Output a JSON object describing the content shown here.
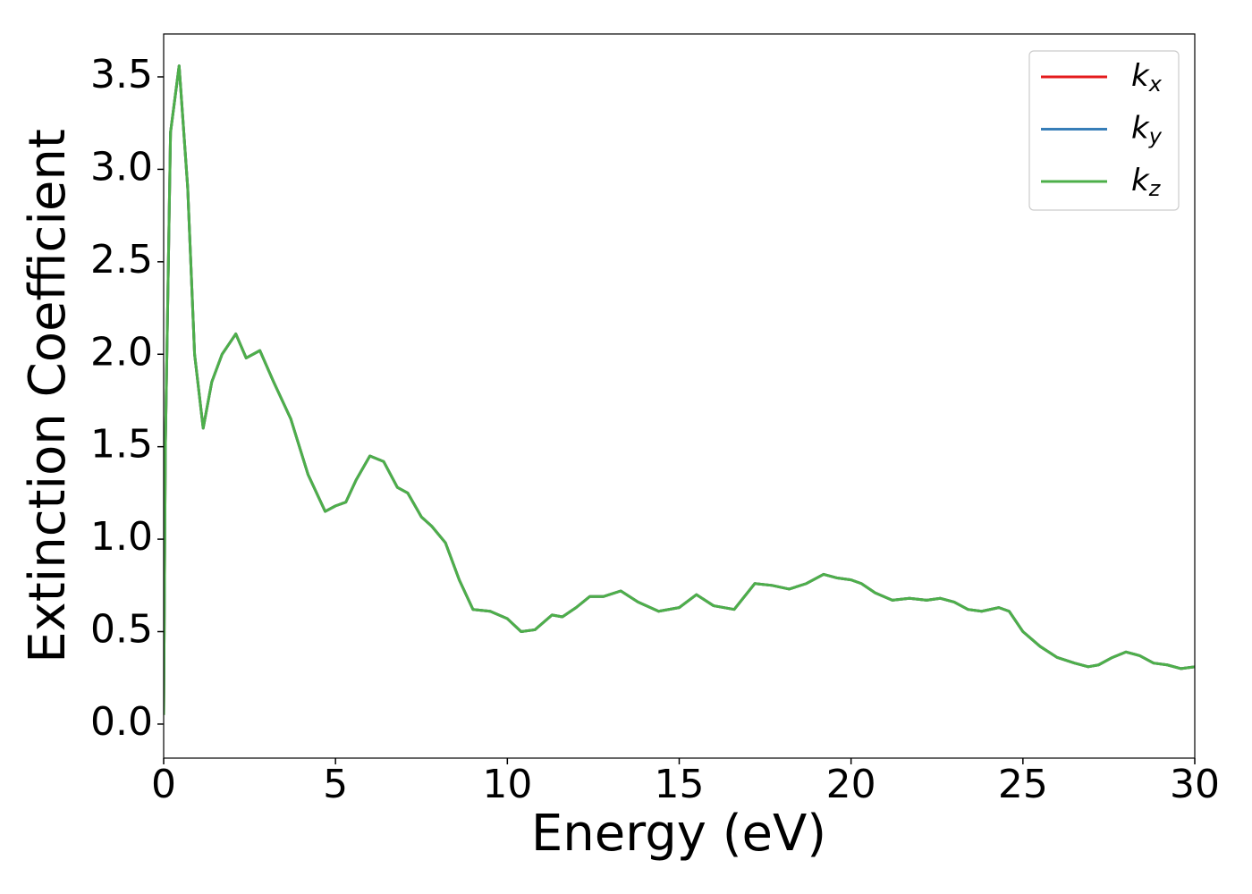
{
  "chart_data": {
    "type": "line",
    "xlabel": "Energy (eV)",
    "ylabel": "Extinction Coefficient",
    "x": [
      0,
      0.05,
      0.2,
      0.45,
      0.7,
      0.9,
      1.15,
      1.4,
      1.7,
      2.1,
      2.4,
      2.8,
      3.2,
      3.7,
      4.2,
      4.7,
      5.0,
      5.3,
      5.6,
      6.0,
      6.4,
      6.8,
      7.1,
      7.5,
      7.8,
      8.2,
      8.6,
      9.0,
      9.5,
      10.0,
      10.4,
      10.8,
      11.3,
      11.6,
      12.0,
      12.4,
      12.8,
      13.3,
      13.8,
      14.4,
      15.0,
      15.5,
      16.0,
      16.6,
      17.2,
      17.7,
      18.2,
      18.7,
      19.2,
      19.6,
      20.0,
      20.3,
      20.7,
      21.2,
      21.7,
      22.2,
      22.6,
      23.0,
      23.4,
      23.8,
      24.3,
      24.6,
      25.0,
      25.5,
      26.0,
      26.5,
      26.9,
      27.2,
      27.6,
      28.0,
      28.4,
      28.8,
      29.2,
      29.6,
      30.0
    ],
    "series": [
      {
        "name": "kx",
        "color": "#e41a1c",
        "values": [
          0.05,
          1.5,
          3.2,
          3.56,
          2.9,
          2.0,
          1.6,
          1.85,
          2.0,
          2.11,
          1.98,
          2.02,
          1.85,
          1.65,
          1.35,
          1.15,
          1.18,
          1.2,
          1.32,
          1.45,
          1.42,
          1.28,
          1.25,
          1.12,
          1.07,
          0.98,
          0.78,
          0.62,
          0.61,
          0.57,
          0.5,
          0.51,
          0.59,
          0.58,
          0.63,
          0.69,
          0.69,
          0.72,
          0.66,
          0.61,
          0.63,
          0.7,
          0.64,
          0.62,
          0.76,
          0.75,
          0.73,
          0.76,
          0.81,
          0.79,
          0.78,
          0.76,
          0.71,
          0.67,
          0.68,
          0.67,
          0.68,
          0.66,
          0.62,
          0.61,
          0.63,
          0.61,
          0.5,
          0.42,
          0.36,
          0.33,
          0.31,
          0.32,
          0.36,
          0.39,
          0.37,
          0.33,
          0.32,
          0.3,
          0.31
        ]
      },
      {
        "name": "ky",
        "color": "#377eb8",
        "values": [
          0.05,
          1.5,
          3.2,
          3.56,
          2.9,
          2.0,
          1.6,
          1.85,
          2.0,
          2.11,
          1.98,
          2.02,
          1.85,
          1.65,
          1.35,
          1.15,
          1.18,
          1.2,
          1.32,
          1.45,
          1.42,
          1.28,
          1.25,
          1.12,
          1.07,
          0.98,
          0.78,
          0.62,
          0.61,
          0.57,
          0.5,
          0.51,
          0.59,
          0.58,
          0.63,
          0.69,
          0.69,
          0.72,
          0.66,
          0.61,
          0.63,
          0.7,
          0.64,
          0.62,
          0.76,
          0.75,
          0.73,
          0.76,
          0.81,
          0.79,
          0.78,
          0.76,
          0.71,
          0.67,
          0.68,
          0.67,
          0.68,
          0.66,
          0.62,
          0.61,
          0.63,
          0.61,
          0.5,
          0.42,
          0.36,
          0.33,
          0.31,
          0.32,
          0.36,
          0.39,
          0.37,
          0.33,
          0.32,
          0.3,
          0.31
        ]
      },
      {
        "name": "kz",
        "color": "#4daf4a",
        "values": [
          0.05,
          1.5,
          3.2,
          3.56,
          2.9,
          2.0,
          1.6,
          1.85,
          2.0,
          2.11,
          1.98,
          2.02,
          1.85,
          1.65,
          1.35,
          1.15,
          1.18,
          1.2,
          1.32,
          1.45,
          1.42,
          1.28,
          1.25,
          1.12,
          1.07,
          0.98,
          0.78,
          0.62,
          0.61,
          0.57,
          0.5,
          0.51,
          0.59,
          0.58,
          0.63,
          0.69,
          0.69,
          0.72,
          0.66,
          0.61,
          0.63,
          0.7,
          0.64,
          0.62,
          0.76,
          0.75,
          0.73,
          0.76,
          0.81,
          0.79,
          0.78,
          0.76,
          0.71,
          0.67,
          0.68,
          0.67,
          0.68,
          0.66,
          0.62,
          0.61,
          0.63,
          0.61,
          0.5,
          0.42,
          0.36,
          0.33,
          0.31,
          0.32,
          0.36,
          0.39,
          0.37,
          0.33,
          0.32,
          0.3,
          0.31
        ]
      }
    ],
    "xlim": [
      0,
      30
    ],
    "xticks": [
      0,
      5,
      10,
      15,
      20,
      25,
      30
    ],
    "ylim": [
      -0.184,
      3.732
    ],
    "yticks": [
      {
        "value": 0,
        "label": "0.0"
      },
      0.5,
      {
        "value": 1,
        "label": "1.0"
      },
      1.5,
      {
        "value": 2,
        "label": "2.0"
      },
      2.5,
      {
        "value": 3,
        "label": "3.0"
      },
      3.5
    ],
    "legend": "upper right",
    "grid": false
  }
}
